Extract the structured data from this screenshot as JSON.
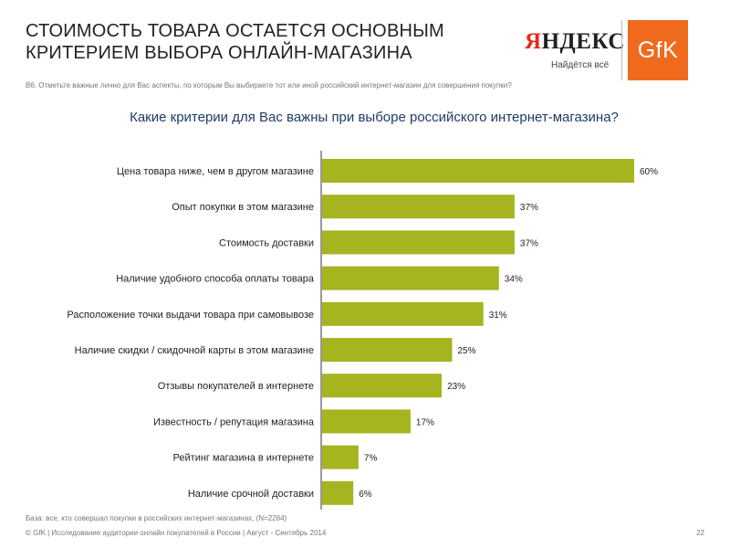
{
  "header": {
    "title_line1": "СТОИМОСТЬ ТОВАРА ОСТАЕТСЯ ОСНОВНЫМ",
    "title_line2": "КРИТЕРИЕМ ВЫБОРА ОНЛАЙН-МАГАЗИНА"
  },
  "logos": {
    "yandex_first": "Я",
    "yandex_rest": "НДЕКС",
    "yandex_slogan": "Найдётся всё",
    "gfk": "GfK"
  },
  "question_note": "В6. Отметьте важные лично для Вас аспекты, по которым Вы выбираете тот или иной российский интернет-магазин для совершения покупки?",
  "colors": {
    "bar": "#a6b41f",
    "gfk_orange": "#f06a1e",
    "yandex_red": "#e32b1f"
  },
  "chart_data": {
    "type": "bar",
    "orientation": "horizontal",
    "title": "Какие критерии для Вас важны при выборе российского интернет-магазина?",
    "categories": [
      "Цена товара ниже, чем в другом магазине",
      "Опыт покупки в этом магазине",
      "Стоимость доставки",
      "Наличие удобного способа оплаты товара",
      "Расположение точки выдачи товара при самовывозе",
      "Наличие скидки / скидочной карты в этом магазине",
      "Отзывы покупателей в интернете",
      "Известность / репутация магазина",
      "Рейтинг магазина в интернете",
      "Наличие срочной доставки"
    ],
    "values": [
      60,
      37,
      37,
      34,
      31,
      25,
      23,
      17,
      7,
      6
    ],
    "labels": [
      "60%",
      "37%",
      "37%",
      "34%",
      "31%",
      "25%",
      "23%",
      "17%",
      "7%",
      "6%"
    ],
    "unit": "%",
    "xlim": [
      0,
      60
    ],
    "xlabel": "",
    "ylabel": "",
    "grid": false,
    "legend": "none"
  },
  "footer": {
    "base": "База: все, кто совершал покупки в российских интернет-магазинах, (N=2284)",
    "credit": "© GfK | Исследование аудитории онлайн покупателей в России | Август - Сентябрь 2014",
    "page": "22"
  }
}
